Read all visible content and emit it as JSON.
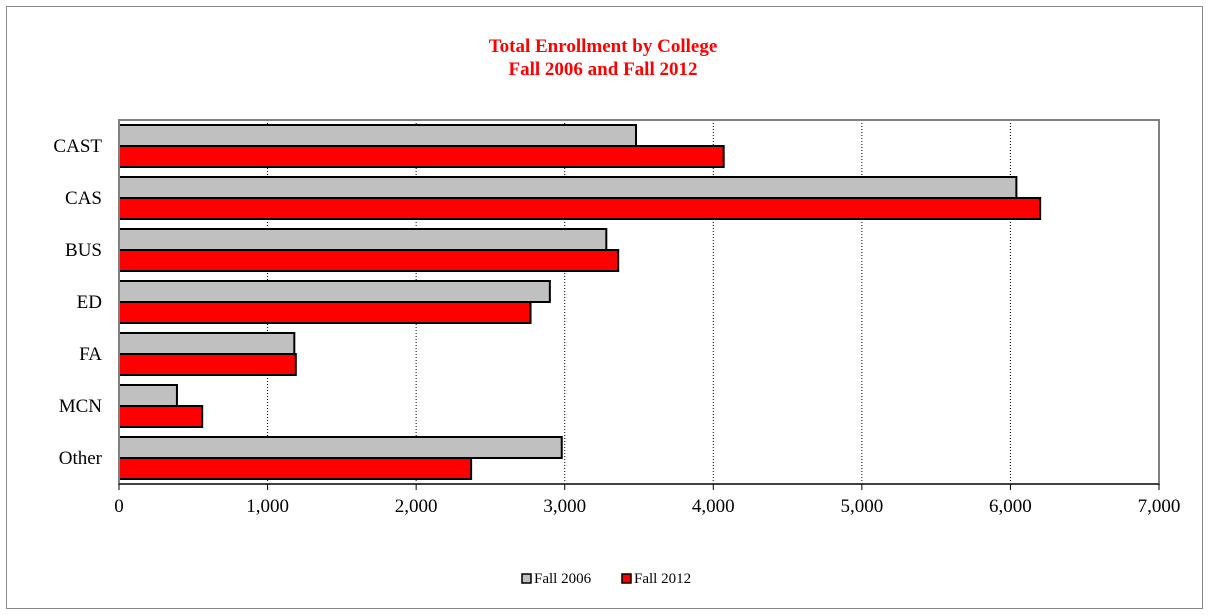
{
  "chart_data": {
    "type": "bar",
    "orientation": "horizontal",
    "title": "Total Enrollment by College",
    "subtitle": "Fall 2006 and Fall 2012",
    "title_color": "#ff0000",
    "categories": [
      "CAST",
      "CAS",
      "BUS",
      "ED",
      "FA",
      "MCN",
      "Other"
    ],
    "series": [
      {
        "name": "Fall 2006",
        "color": "#c0c0c0",
        "values": [
          3480,
          6040,
          3280,
          2900,
          1180,
          390,
          2980
        ]
      },
      {
        "name": "Fall 2012",
        "color": "#ff0000",
        "values": [
          4070,
          6200,
          3360,
          2770,
          1190,
          560,
          2370
        ]
      }
    ],
    "xlim": [
      0,
      7000
    ],
    "x_ticks": [
      0,
      1000,
      2000,
      3000,
      4000,
      5000,
      6000,
      7000
    ],
    "x_tick_labels": [
      "0",
      "1,000",
      "2,000",
      "3,000",
      "4,000",
      "5,000",
      "6,000",
      "7,000"
    ],
    "grid": "vertical dotted",
    "legend_position": "bottom"
  }
}
